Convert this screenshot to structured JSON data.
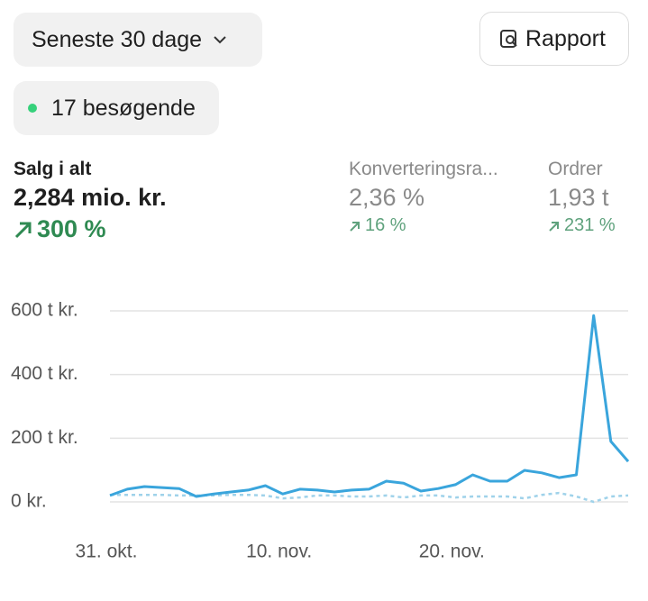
{
  "filters": {
    "date_range": "Seneste 30 dage",
    "report": "Rapport",
    "visitors": "17 besøgende"
  },
  "metrics": [
    {
      "label": "Salg i alt",
      "value": "2,284 mio. kr.",
      "change": "300 %"
    },
    {
      "label": "Konverteringsra...",
      "value": "2,36 %",
      "change": "16 %"
    },
    {
      "label": "Ordrer",
      "value": "1,93 t",
      "change": "231 %"
    }
  ],
  "chart_data": {
    "type": "line",
    "categories": [
      "31. okt.",
      null,
      null,
      null,
      null,
      null,
      null,
      null,
      null,
      null,
      "10. nov.",
      null,
      null,
      null,
      null,
      null,
      null,
      null,
      null,
      null,
      "20. nov.",
      null,
      null,
      null,
      null,
      null,
      null,
      null,
      null,
      null,
      null
    ],
    "series": [
      {
        "color": "#3aa5dc",
        "style": "solid",
        "values": [
          20000,
          40000,
          48000,
          45000,
          42000,
          17000,
          25000,
          31000,
          37000,
          51000,
          25000,
          40000,
          37000,
          31000,
          37000,
          40000,
          65000,
          59000,
          34000,
          42000,
          54000,
          85000,
          65000,
          65000,
          99000,
          91000,
          76000,
          85000,
          585000,
          190000,
          127000
        ]
      },
      {
        "color": "#9fd2ea",
        "style": "dotted",
        "values": [
          22000,
          22000,
          22000,
          22000,
          20000,
          20000,
          20000,
          22000,
          22000,
          20000,
          11000,
          14000,
          20000,
          20000,
          17000,
          17000,
          20000,
          14000,
          20000,
          20000,
          14000,
          17000,
          17000,
          17000,
          11000,
          22000,
          28000,
          17000,
          0,
          17000,
          20000
        ]
      }
    ],
    "ylim": [
      0,
      600000
    ],
    "yticks": [
      {
        "value": 0,
        "label": "0 kr."
      },
      {
        "value": 200000,
        "label": "200 t kr."
      },
      {
        "value": 400000,
        "label": "400 t kr."
      },
      {
        "value": 600000,
        "label": "600 t kr."
      }
    ],
    "grid": true
  }
}
